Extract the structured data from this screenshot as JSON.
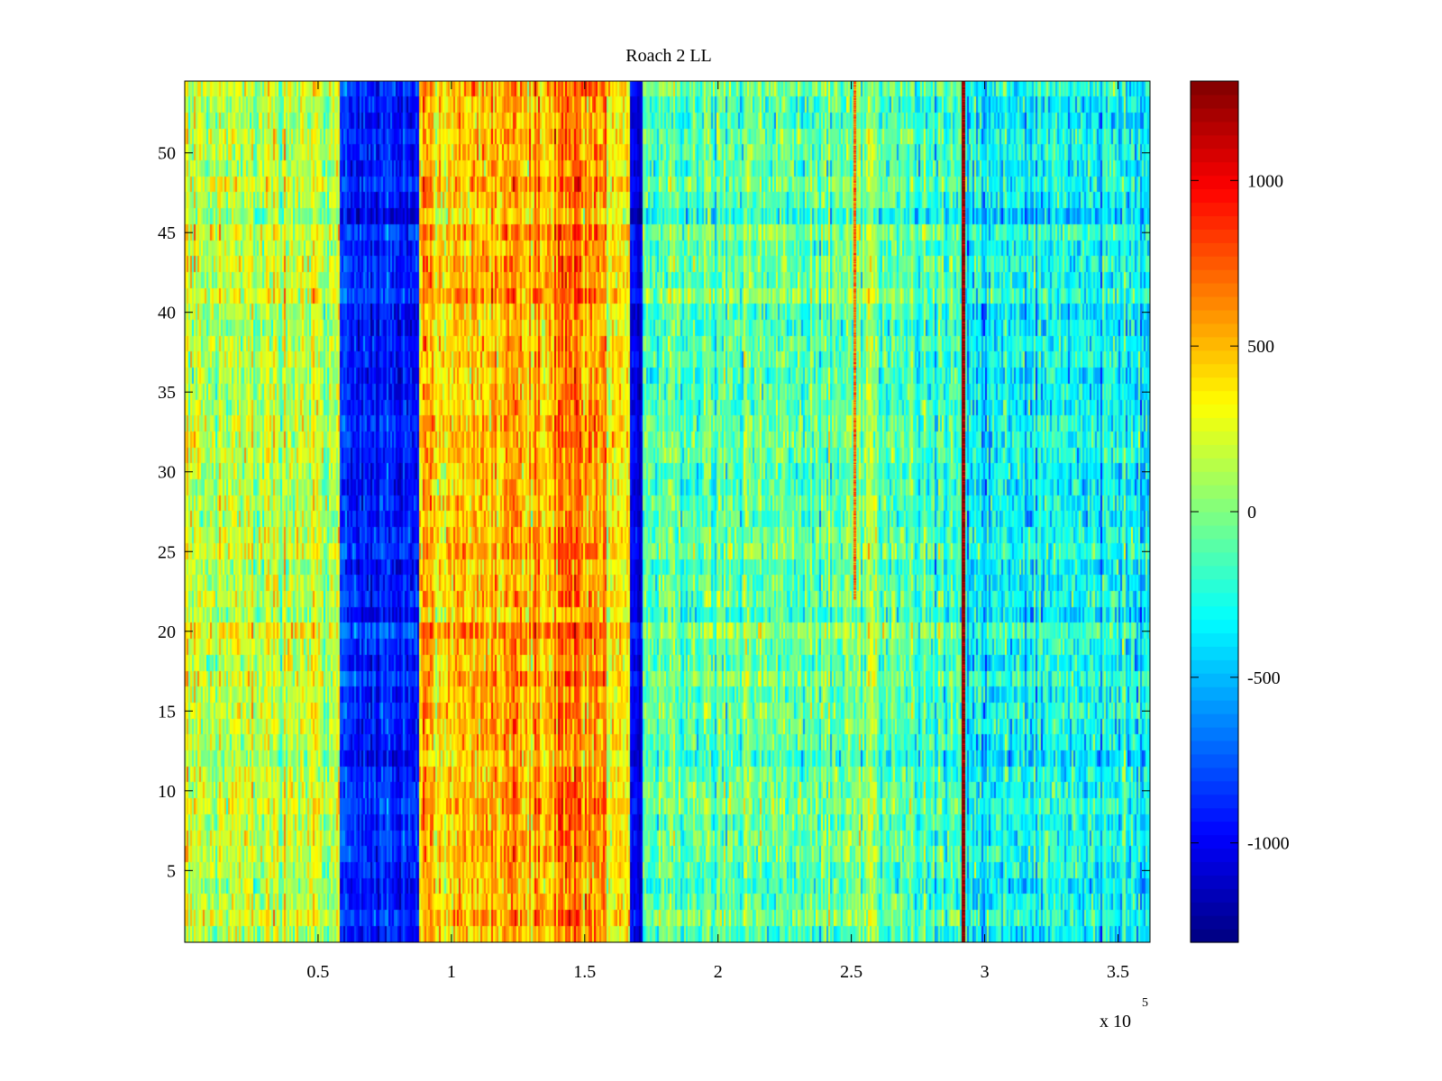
{
  "chart_data": {
    "type": "heatmap",
    "title": "Roach 2 LL",
    "xlabel": "",
    "ylabel": "",
    "x_exponent_label": "x 10",
    "x_exponent_power": "5",
    "xlim": [
      0,
      362000
    ],
    "ylim": [
      0.5,
      54.5
    ],
    "rows": 54,
    "x_ticks": [
      {
        "value": 50000,
        "label": "0.5"
      },
      {
        "value": 100000,
        "label": "1"
      },
      {
        "value": 150000,
        "label": "1.5"
      },
      {
        "value": 200000,
        "label": "2"
      },
      {
        "value": 250000,
        "label": "2.5"
      },
      {
        "value": 300000,
        "label": "3"
      },
      {
        "value": 350000,
        "label": "3.5"
      }
    ],
    "y_ticks": [
      {
        "value": 5,
        "label": "5"
      },
      {
        "value": 10,
        "label": "10"
      },
      {
        "value": 15,
        "label": "15"
      },
      {
        "value": 20,
        "label": "20"
      },
      {
        "value": 25,
        "label": "25"
      },
      {
        "value": 30,
        "label": "30"
      },
      {
        "value": 35,
        "label": "35"
      },
      {
        "value": 40,
        "label": "40"
      },
      {
        "value": 45,
        "label": "45"
      },
      {
        "value": 50,
        "label": "50"
      }
    ],
    "colorbar": {
      "colormap": "jet",
      "range": [
        -1300,
        1300
      ],
      "ticks": [
        {
          "value": 1000,
          "label": "1000"
        },
        {
          "value": 500,
          "label": "500"
        },
        {
          "value": 0,
          "label": "0"
        },
        {
          "value": -500,
          "label": "-500"
        },
        {
          "value": -1000,
          "label": "-1000"
        }
      ]
    },
    "column_profile": [
      {
        "x_start": 0,
        "x_end": 58000,
        "mean": 150,
        "noise": 260
      },
      {
        "x_start": 58000,
        "x_end": 88000,
        "mean": -900,
        "noise": 180
      },
      {
        "x_start": 88000,
        "x_end": 115000,
        "mean": 430,
        "noise": 260
      },
      {
        "x_start": 115000,
        "x_end": 140000,
        "mean": 520,
        "noise": 270
      },
      {
        "x_start": 140000,
        "x_end": 158000,
        "mean": 640,
        "noise": 280
      },
      {
        "x_start": 158000,
        "x_end": 167000,
        "mean": 320,
        "noise": 240
      },
      {
        "x_start": 167000,
        "x_end": 171500,
        "mean": -1050,
        "noise": 120
      },
      {
        "x_start": 171500,
        "x_end": 250000,
        "mean": -80,
        "noise": 260
      },
      {
        "x_start": 250000,
        "x_end": 260000,
        "mean": 20,
        "noise": 260
      },
      {
        "x_start": 260000,
        "x_end": 291500,
        "mean": -180,
        "noise": 260
      },
      {
        "x_start": 291500,
        "x_end": 292500,
        "mean": 1250,
        "noise": 60
      },
      {
        "x_start": 292500,
        "x_end": 362000,
        "mean": -320,
        "noise": 280
      }
    ],
    "line_features": [
      {
        "x": 251000,
        "value": 700,
        "y_from": 22,
        "y_to": 54.5
      },
      {
        "x": 292000,
        "value": 1250,
        "y_from": 0.5,
        "y_to": 54.5
      }
    ]
  }
}
